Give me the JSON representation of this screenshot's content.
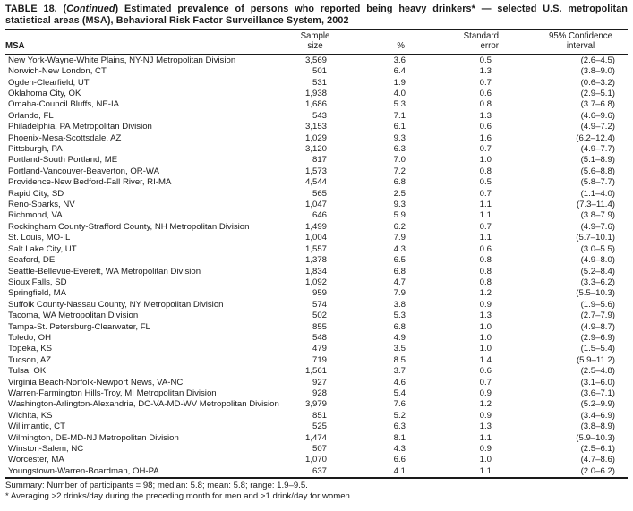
{
  "title": {
    "prefix": "TABLE 18. (",
    "continued": "Continued",
    "rest1": ") Estimated prevalence of persons who reported being heavy drinkers* — selected U.S. metropolitan",
    "line2": "statistical areas (MSA), Behavioral Risk Factor Surveillance System, 2002"
  },
  "table": {
    "headers": {
      "msa": "MSA",
      "sample_l1": "Sample",
      "sample_l2": "size",
      "pct": "%",
      "se_l1": "Standard",
      "se_l2": "error",
      "ci_l1": "95% Confidence",
      "ci_l2": "interval"
    },
    "rows": [
      {
        "msa": "New York-Wayne-White Plains, NY-NJ Metropolitan Division",
        "sample": "3,569",
        "pct": "3.6",
        "se": "0.5",
        "ci": "(2.6–4.5)"
      },
      {
        "msa": "Norwich-New London, CT",
        "sample": "501",
        "pct": "6.4",
        "se": "1.3",
        "ci": "(3.8–9.0)"
      },
      {
        "msa": "Ogden-Clearfield, UT",
        "sample": "531",
        "pct": "1.9",
        "se": "0.7",
        "ci": "(0.6–3.2)"
      },
      {
        "msa": "Oklahoma City, OK",
        "sample": "1,938",
        "pct": "4.0",
        "se": "0.6",
        "ci": "(2.9–5.1)"
      },
      {
        "msa": "Omaha-Council Bluffs, NE-IA",
        "sample": "1,686",
        "pct": "5.3",
        "se": "0.8",
        "ci": "(3.7–6.8)"
      },
      {
        "msa": "Orlando, FL",
        "sample": "543",
        "pct": "7.1",
        "se": "1.3",
        "ci": "(4.6–9.6)"
      },
      {
        "msa": "Philadelphia, PA Metropolitan Division",
        "sample": "3,153",
        "pct": "6.1",
        "se": "0.6",
        "ci": "(4.9–7.2)"
      },
      {
        "msa": "Phoenix-Mesa-Scottsdale, AZ",
        "sample": "1,029",
        "pct": "9.3",
        "se": "1.6",
        "ci": "(6.2–12.4)"
      },
      {
        "msa": "Pittsburgh, PA",
        "sample": "3,120",
        "pct": "6.3",
        "se": "0.7",
        "ci": "(4.9–7.7)"
      },
      {
        "msa": "Portland-South Portland, ME",
        "sample": "817",
        "pct": "7.0",
        "se": "1.0",
        "ci": "(5.1–8.9)"
      },
      {
        "msa": "Portland-Vancouver-Beaverton, OR-WA",
        "sample": "1,573",
        "pct": "7.2",
        "se": "0.8",
        "ci": "(5.6–8.8)"
      },
      {
        "msa": "Providence-New Bedford-Fall River, RI-MA",
        "sample": "4,544",
        "pct": "6.8",
        "se": "0.5",
        "ci": "(5.8–7.7)"
      },
      {
        "msa": "Rapid City, SD",
        "sample": "565",
        "pct": "2.5",
        "se": "0.7",
        "ci": "(1.1–4.0)"
      },
      {
        "msa": "Reno-Sparks, NV",
        "sample": "1,047",
        "pct": "9.3",
        "se": "1.1",
        "ci": "(7.3–11.4)"
      },
      {
        "msa": "Richmond, VA",
        "sample": "646",
        "pct": "5.9",
        "se": "1.1",
        "ci": "(3.8–7.9)"
      },
      {
        "msa": "Rockingham County-Strafford County, NH Metropolitan Division",
        "sample": "1,499",
        "pct": "6.2",
        "se": "0.7",
        "ci": "(4.9–7.6)"
      },
      {
        "msa": "St. Louis, MO-IL",
        "sample": "1,004",
        "pct": "7.9",
        "se": "1.1",
        "ci": "(5.7–10.1)"
      },
      {
        "msa": "Salt Lake City, UT",
        "sample": "1,557",
        "pct": "4.3",
        "se": "0.6",
        "ci": "(3.0–5.5)"
      },
      {
        "msa": "Seaford, DE",
        "sample": "1,378",
        "pct": "6.5",
        "se": "0.8",
        "ci": "(4.9–8.0)"
      },
      {
        "msa": "Seattle-Bellevue-Everett, WA Metropolitan Division",
        "sample": "1,834",
        "pct": "6.8",
        "se": "0.8",
        "ci": "(5.2–8.4)"
      },
      {
        "msa": "Sioux Falls, SD",
        "sample": "1,092",
        "pct": "4.7",
        "se": "0.8",
        "ci": "(3.3–6.2)"
      },
      {
        "msa": "Springfield, MA",
        "sample": "959",
        "pct": "7.9",
        "se": "1.2",
        "ci": "(5.5–10.3)"
      },
      {
        "msa": "Suffolk County-Nassau County, NY Metropolitan Division",
        "sample": "574",
        "pct": "3.8",
        "se": "0.9",
        "ci": "(1.9–5.6)"
      },
      {
        "msa": "Tacoma, WA Metropolitan Division",
        "sample": "502",
        "pct": "5.3",
        "se": "1.3",
        "ci": "(2.7–7.9)"
      },
      {
        "msa": "Tampa-St. Petersburg-Clearwater, FL",
        "sample": "855",
        "pct": "6.8",
        "se": "1.0",
        "ci": "(4.9–8.7)"
      },
      {
        "msa": "Toledo, OH",
        "sample": "548",
        "pct": "4.9",
        "se": "1.0",
        "ci": "(2.9–6.9)"
      },
      {
        "msa": "Topeka, KS",
        "sample": "479",
        "pct": "3.5",
        "se": "1.0",
        "ci": "(1.5–5.4)"
      },
      {
        "msa": "Tucson, AZ",
        "sample": "719",
        "pct": "8.5",
        "se": "1.4",
        "ci": "(5.9–11.2)"
      },
      {
        "msa": "Tulsa, OK",
        "sample": "1,561",
        "pct": "3.7",
        "se": "0.6",
        "ci": "(2.5–4.8)"
      },
      {
        "msa": "Virginia Beach-Norfolk-Newport News, VA-NC",
        "sample": "927",
        "pct": "4.6",
        "se": "0.7",
        "ci": "(3.1–6.0)"
      },
      {
        "msa": "Warren-Farmington Hills-Troy, MI Metropolitan Division",
        "sample": "928",
        "pct": "5.4",
        "se": "0.9",
        "ci": "(3.6–7.1)"
      },
      {
        "msa": "Washington-Arlington-Alexandria, DC-VA-MD-WV Metropolitan Division",
        "sample": "3,979",
        "pct": "7.6",
        "se": "1.2",
        "ci": "(5.2–9.9)"
      },
      {
        "msa": "Wichita, KS",
        "sample": "851",
        "pct": "5.2",
        "se": "0.9",
        "ci": "(3.4–6.9)"
      },
      {
        "msa": "Willimantic, CT",
        "sample": "525",
        "pct": "6.3",
        "se": "1.3",
        "ci": "(3.8–8.9)"
      },
      {
        "msa": "Wilmington, DE-MD-NJ Metropolitan Division",
        "sample": "1,474",
        "pct": "8.1",
        "se": "1.1",
        "ci": "(5.9–10.3)"
      },
      {
        "msa": "Winston-Salem, NC",
        "sample": "507",
        "pct": "4.3",
        "se": "0.9",
        "ci": "(2.5–6.1)"
      },
      {
        "msa": "Worcester, MA",
        "sample": "1,070",
        "pct": "6.6",
        "se": "1.0",
        "ci": "(4.7–8.6)"
      },
      {
        "msa": "Youngstown-Warren-Boardman, OH-PA",
        "sample": "637",
        "pct": "4.1",
        "se": "1.1",
        "ci": "(2.0–6.2)"
      }
    ]
  },
  "footer": {
    "summary": "Summary: Number of participants = 98; median: 5.8; mean: 5.8; range: 1.9–9.5.",
    "footnote": "* Averaging >2 drinks/day during the preceding month for men and >1 drink/day for women."
  }
}
